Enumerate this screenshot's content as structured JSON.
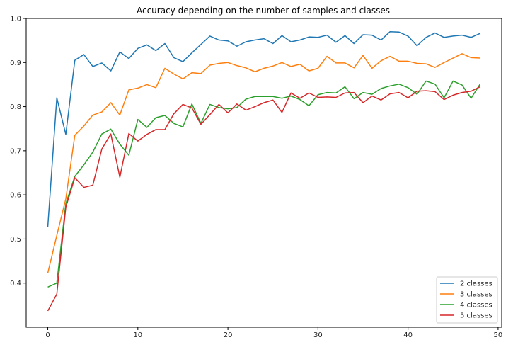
{
  "chart_data": {
    "type": "line",
    "title": "Accuracy depending on the number of samples and classes",
    "xlabel": "",
    "ylabel": "",
    "xlim": [
      -2.4,
      50.4
    ],
    "ylim": [
      0.3,
      1.0
    ],
    "xticks": [
      0,
      10,
      20,
      30,
      40,
      50
    ],
    "yticks": [
      0.4,
      0.5,
      0.6,
      0.7,
      0.8,
      0.9,
      1.0
    ],
    "xtick_labels": [
      "0",
      "10",
      "20",
      "30",
      "40",
      "50"
    ],
    "ytick_labels": [
      "0.4",
      "0.5",
      "0.6",
      "0.7",
      "0.8",
      "0.9",
      "1.0"
    ],
    "grid": false,
    "legend_position": "lower-right",
    "x": [
      0,
      1,
      2,
      3,
      4,
      5,
      6,
      7,
      8,
      9,
      10,
      11,
      12,
      13,
      14,
      15,
      16,
      17,
      18,
      19,
      20,
      21,
      22,
      23,
      24,
      25,
      26,
      27,
      28,
      29,
      30,
      31,
      32,
      33,
      34,
      35,
      36,
      37,
      38,
      39,
      40,
      41,
      42,
      43,
      44,
      45,
      46,
      47,
      48
    ],
    "series": [
      {
        "name": "2 classes",
        "color": "#1f77b4",
        "values": [
          0.528,
          0.82,
          0.737,
          0.905,
          0.918,
          0.891,
          0.899,
          0.881,
          0.924,
          0.909,
          0.932,
          0.94,
          0.927,
          0.943,
          0.911,
          0.902,
          0.922,
          0.941,
          0.96,
          0.951,
          0.949,
          0.937,
          0.947,
          0.951,
          0.954,
          0.943,
          0.961,
          0.947,
          0.951,
          0.958,
          0.957,
          0.962,
          0.946,
          0.961,
          0.943,
          0.963,
          0.962,
          0.951,
          0.97,
          0.969,
          0.96,
          0.938,
          0.957,
          0.967,
          0.957,
          0.96,
          0.962,
          0.957,
          0.966
        ]
      },
      {
        "name": "3 classes",
        "color": "#ff7f0e",
        "values": [
          0.423,
          0.508,
          0.591,
          0.735,
          0.756,
          0.781,
          0.788,
          0.809,
          0.781,
          0.838,
          0.842,
          0.85,
          0.843,
          0.887,
          0.874,
          0.863,
          0.877,
          0.875,
          0.894,
          0.898,
          0.9,
          0.893,
          0.888,
          0.879,
          0.887,
          0.892,
          0.9,
          0.891,
          0.896,
          0.881,
          0.887,
          0.914,
          0.899,
          0.899,
          0.888,
          0.916,
          0.887,
          0.904,
          0.914,
          0.903,
          0.903,
          0.898,
          0.897,
          0.889,
          0.9,
          0.91,
          0.92,
          0.911,
          0.91
        ]
      },
      {
        "name": "4 classes",
        "color": "#2ca02c",
        "values": [
          0.391,
          0.4,
          0.58,
          0.642,
          0.668,
          0.697,
          0.738,
          0.749,
          0.715,
          0.69,
          0.771,
          0.753,
          0.775,
          0.78,
          0.762,
          0.754,
          0.806,
          0.762,
          0.805,
          0.798,
          0.795,
          0.798,
          0.817,
          0.823,
          0.823,
          0.823,
          0.819,
          0.824,
          0.816,
          0.802,
          0.827,
          0.832,
          0.831,
          0.845,
          0.818,
          0.832,
          0.828,
          0.841,
          0.847,
          0.851,
          0.843,
          0.828,
          0.858,
          0.851,
          0.82,
          0.858,
          0.849,
          0.819,
          0.851
        ]
      },
      {
        "name": "5 classes",
        "color": "#d62728",
        "values": [
          0.337,
          0.375,
          0.572,
          0.639,
          0.617,
          0.622,
          0.704,
          0.738,
          0.64,
          0.739,
          0.722,
          0.737,
          0.748,
          0.748,
          0.784,
          0.805,
          0.797,
          0.76,
          0.782,
          0.805,
          0.786,
          0.806,
          0.792,
          0.8,
          0.809,
          0.815,
          0.787,
          0.831,
          0.819,
          0.831,
          0.821,
          0.822,
          0.821,
          0.831,
          0.832,
          0.809,
          0.824,
          0.815,
          0.829,
          0.832,
          0.82,
          0.835,
          0.836,
          0.834,
          0.816,
          0.826,
          0.832,
          0.835,
          0.845
        ]
      }
    ]
  }
}
